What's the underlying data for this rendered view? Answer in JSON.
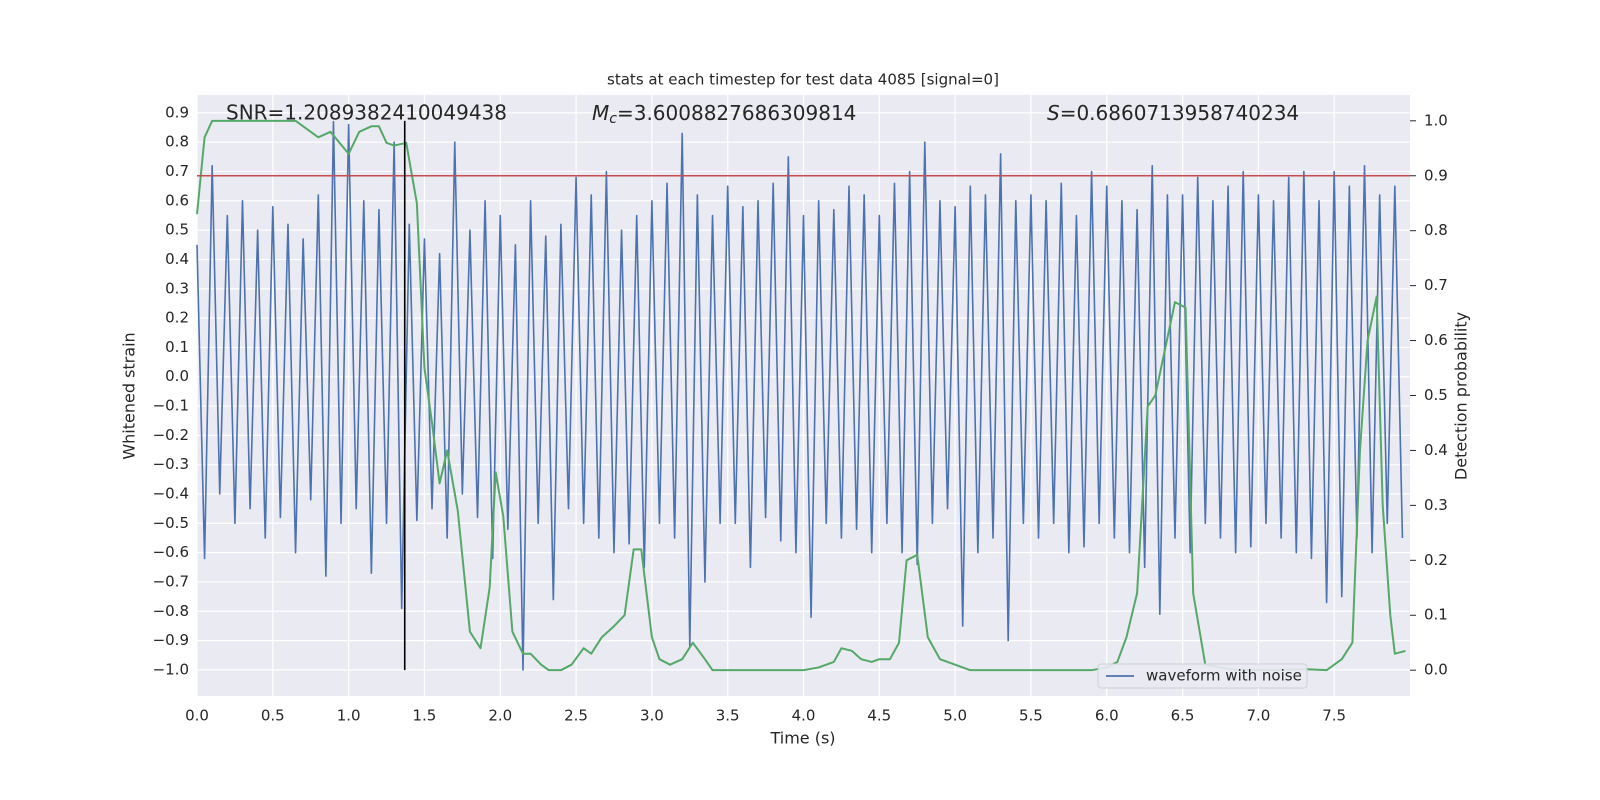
{
  "chart_data": {
    "type": "line",
    "title": "stats at each timestep for test data 4085 [signal=0]",
    "xlabel": "Time (s)",
    "ylabel": "Whitened strain",
    "y2label": "Detection probability",
    "annotations": [
      {
        "text": "SNR=1.2089382410049438"
      },
      {
        "symbol": "M",
        "subscript": "c",
        "text": "=3.6008827686309814"
      },
      {
        "symbol": "S",
        "text": "=0.6860713958740234"
      }
    ],
    "xlim": [
      0,
      8.0
    ],
    "ylim": [
      -1.089,
      0.961
    ],
    "y2lim": [
      -0.047,
      1.047
    ],
    "xticks": [
      {
        "value": 0,
        "label": "0.0"
      },
      0.5,
      {
        "value": 1,
        "label": "1.0"
      },
      1.5,
      {
        "value": 2,
        "label": "2.0"
      },
      2.5,
      {
        "value": 3,
        "label": "3.0"
      },
      3.5,
      {
        "value": 4,
        "label": "4.0"
      },
      4.5,
      {
        "value": 5,
        "label": "5.0"
      },
      5.5,
      {
        "value": 6,
        "label": "6.0"
      },
      6.5,
      {
        "value": 7,
        "label": "7.0"
      },
      7.5
    ],
    "yticks": [
      {
        "value": -1,
        "label": "−1.0"
      },
      {
        "value": -0.9,
        "label": "−0.9"
      },
      {
        "value": -0.8,
        "label": "−0.8"
      },
      {
        "value": -0.7,
        "label": "−0.7"
      },
      {
        "value": -0.6,
        "label": "−0.6"
      },
      {
        "value": -0.5,
        "label": "−0.5"
      },
      {
        "value": -0.4,
        "label": "−0.4"
      },
      {
        "value": -0.3,
        "label": "−0.3"
      },
      {
        "value": -0.2,
        "label": "−0.2"
      },
      {
        "value": -0.1,
        "label": "−0.1"
      },
      {
        "value": 0,
        "label": "0.0"
      },
      0.1,
      0.2,
      0.3,
      0.4,
      0.5,
      0.6,
      0.7,
      0.8,
      0.9
    ],
    "y2ticks": [
      {
        "value": 0,
        "label": "0.0"
      },
      0.1,
      0.2,
      0.3,
      0.4,
      0.5,
      0.6,
      0.7,
      0.8,
      0.9,
      {
        "value": 1,
        "label": "1.0"
      }
    ],
    "grid": true,
    "legend": "lower right",
    "series": [
      {
        "name": "waveform with noise",
        "color": "#4c72b0",
        "x": [
          0,
          0.05,
          0.1,
          0.15,
          0.2,
          0.25,
          0.3,
          0.35,
          0.4,
          0.45,
          0.5,
          0.55,
          0.6,
          0.65,
          0.7,
          0.75,
          0.8,
          0.85,
          0.9,
          0.95,
          1,
          1.05,
          1.1,
          1.15,
          1.2,
          1.25,
          1.3,
          1.35,
          1.4,
          1.45,
          1.5,
          1.55,
          1.6,
          1.65,
          1.7,
          1.75,
          1.8,
          1.85,
          1.9,
          1.95,
          2,
          2.05,
          2.1,
          2.15,
          2.2,
          2.25,
          2.3,
          2.35,
          2.4,
          2.45,
          2.5,
          2.55,
          2.6,
          2.65,
          2.7,
          2.75,
          2.8,
          2.85,
          2.9,
          2.95,
          3,
          3.05,
          3.1,
          3.15,
          3.2,
          3.25,
          3.3,
          3.35,
          3.4,
          3.45,
          3.5,
          3.55,
          3.6,
          3.65,
          3.7,
          3.75,
          3.8,
          3.85,
          3.9,
          3.95,
          4,
          4.05,
          4.1,
          4.15,
          4.2,
          4.25,
          4.3,
          4.35,
          4.4,
          4.45,
          4.5,
          4.55,
          4.6,
          4.65,
          4.7,
          4.75,
          4.8,
          4.85,
          4.9,
          4.95,
          5,
          5.05,
          5.1,
          5.15,
          5.2,
          5.25,
          5.3,
          5.35,
          5.4,
          5.45,
          5.5,
          5.55,
          5.6,
          5.65,
          5.7,
          5.75,
          5.8,
          5.85,
          5.9,
          5.95,
          6,
          6.05,
          6.1,
          6.15,
          6.2,
          6.25,
          6.3,
          6.35,
          6.4,
          6.45,
          6.5,
          6.55,
          6.6,
          6.65,
          6.7,
          6.75,
          6.8,
          6.85,
          6.9,
          6.95,
          7,
          7.05,
          7.1,
          7.15,
          7.2,
          7.25,
          7.3,
          7.35,
          7.4,
          7.45,
          7.5,
          7.55,
          7.6,
          7.65,
          7.7,
          7.75,
          7.8,
          7.85,
          7.9,
          7.95
        ],
        "values": [
          0.45,
          -0.62,
          0.72,
          -0.4,
          0.55,
          -0.5,
          0.6,
          -0.45,
          0.5,
          -0.55,
          0.58,
          -0.48,
          0.52,
          -0.6,
          0.47,
          -0.42,
          0.62,
          -0.68,
          0.87,
          -0.5,
          0.86,
          -0.45,
          0.6,
          -0.67,
          0.57,
          -0.5,
          0.8,
          -0.79,
          0.52,
          -0.49,
          0.47,
          -0.45,
          0.42,
          -0.55,
          0.8,
          -0.4,
          0.5,
          -0.48,
          0.6,
          -0.62,
          0.55,
          -0.52,
          0.45,
          -1.0,
          0.6,
          -0.5,
          0.48,
          -0.76,
          0.52,
          -0.45,
          0.68,
          -0.5,
          0.62,
          -0.55,
          0.7,
          -0.6,
          0.5,
          -0.57,
          0.55,
          -0.65,
          0.6,
          -0.5,
          0.66,
          -0.55,
          0.83,
          -0.92,
          0.62,
          -0.7,
          0.55,
          -0.5,
          0.65,
          -0.5,
          0.58,
          -0.65,
          0.6,
          -0.48,
          0.66,
          -0.56,
          0.75,
          -0.6,
          0.55,
          -0.82,
          0.6,
          -0.5,
          0.57,
          -0.55,
          0.65,
          -0.52,
          0.62,
          -0.6,
          0.55,
          -0.5,
          0.66,
          -0.6,
          0.7,
          -0.64,
          0.8,
          -0.5,
          0.6,
          -0.45,
          0.58,
          -0.85,
          0.65,
          -0.6,
          0.62,
          -0.55,
          0.76,
          -0.9,
          0.6,
          -0.5,
          0.62,
          -0.55,
          0.6,
          -0.5,
          0.66,
          -0.6,
          0.55,
          -0.58,
          0.7,
          -0.5,
          0.65,
          -0.55,
          0.6,
          -0.6,
          0.57,
          -0.65,
          0.72,
          -0.81,
          0.62,
          -0.55,
          0.62,
          -0.6,
          0.68,
          -0.5,
          0.6,
          -0.55,
          0.65,
          -0.6,
          0.7,
          -0.58,
          0.62,
          -0.5,
          0.6,
          -0.55,
          0.68,
          -0.6,
          0.7,
          -0.62,
          0.6,
          -0.77,
          0.7,
          -0.75,
          0.65,
          -0.55,
          0.72,
          -0.6,
          0.62,
          -0.5,
          0.65,
          -0.55
        ]
      },
      {
        "color": "#55a868",
        "axis": "y2",
        "x": [
          0,
          0.05,
          0.1,
          0.2,
          0.65,
          0.8,
          0.88,
          1.0,
          1.07,
          1.15,
          1.2,
          1.25,
          1.3,
          1.38,
          1.45,
          1.5,
          1.55,
          1.6,
          1.65,
          1.72,
          1.8,
          1.87,
          1.93,
          1.97,
          2.02,
          2.08,
          2.15,
          2.2,
          2.27,
          2.32,
          2.4,
          2.47,
          2.55,
          2.6,
          2.67,
          2.75,
          2.82,
          2.88,
          2.93,
          3.0,
          3.05,
          3.12,
          3.2,
          3.27,
          3.35,
          3.4,
          3.6,
          4.0,
          4.1,
          4.2,
          4.25,
          4.32,
          4.38,
          4.45,
          4.5,
          4.57,
          4.63,
          4.68,
          4.75,
          4.82,
          4.9,
          5.0,
          5.1,
          5.9,
          6.0,
          6.07,
          6.13,
          6.2,
          6.27,
          6.32,
          6.45,
          6.52,
          6.57,
          6.65,
          6.75,
          6.85,
          7.1,
          7.3,
          7.45,
          7.5,
          7.55,
          7.62,
          7.67,
          7.72,
          7.78,
          7.82,
          7.87,
          7.9,
          7.97
        ],
        "values": [
          0.83,
          0.97,
          1.0,
          1.0,
          1.0,
          0.97,
          0.98,
          0.94,
          0.98,
          0.99,
          0.99,
          0.96,
          0.955,
          0.96,
          0.85,
          0.55,
          0.45,
          0.34,
          0.4,
          0.29,
          0.07,
          0.04,
          0.15,
          0.36,
          0.28,
          0.07,
          0.03,
          0.03,
          0.01,
          0.0,
          0.0,
          0.01,
          0.04,
          0.03,
          0.06,
          0.08,
          0.1,
          0.22,
          0.22,
          0.06,
          0.02,
          0.01,
          0.02,
          0.05,
          0.02,
          0.0,
          0.0,
          0.0,
          0.005,
          0.015,
          0.04,
          0.035,
          0.02,
          0.015,
          0.02,
          0.02,
          0.05,
          0.2,
          0.21,
          0.06,
          0.02,
          0.01,
          0.0,
          0.0,
          0.005,
          0.015,
          0.06,
          0.14,
          0.48,
          0.5,
          0.67,
          0.66,
          0.14,
          0.01,
          0.005,
          0.0,
          0.0,
          0.002,
          0.0,
          0.01,
          0.02,
          0.05,
          0.4,
          0.6,
          0.68,
          0.3,
          0.1,
          0.03,
          0.035
        ]
      }
    ],
    "hlines": [
      {
        "value": 0.9,
        "axis": "y2",
        "color": "#c44e52"
      }
    ],
    "vlines": [
      {
        "value": 1.37,
        "color": "#000000",
        "y2range": [
          0,
          1
        ]
      }
    ]
  }
}
